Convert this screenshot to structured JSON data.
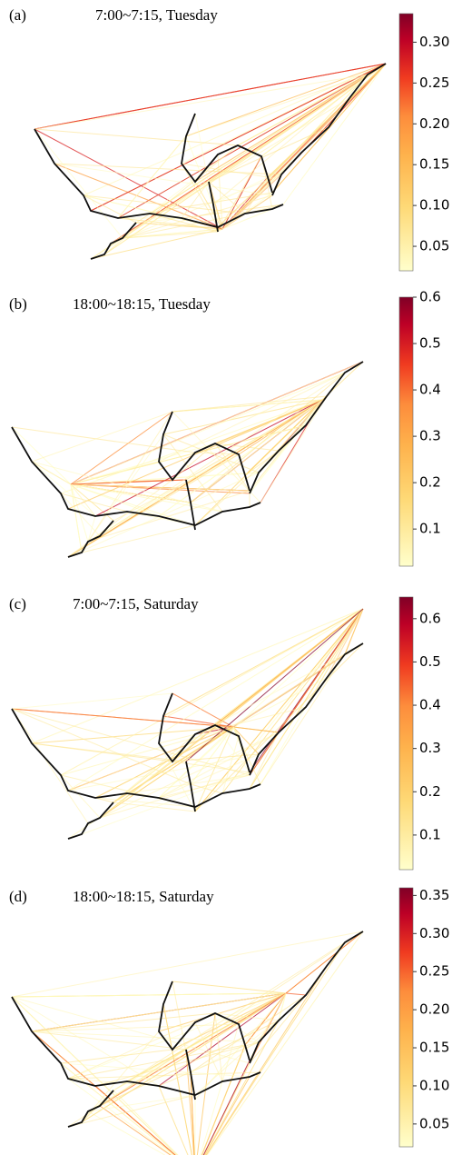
{
  "panels": [
    {
      "label": "(a)",
      "title": "7:00~7:15,  Tuesday",
      "colorbar": {
        "lim": [
          0.02,
          0.335
        ],
        "ticks": [
          0.05,
          {
            "value": 0.1,
            "label": "0.10"
          },
          0.15,
          {
            "value": 0.2,
            "label": "0.20"
          },
          0.25,
          {
            "value": 0.3,
            "label": "0.30"
          }
        ]
      }
    },
    {
      "label": "(b)",
      "title": "18:00~18:15, Tuesday",
      "colorbar": {
        "lim": [
          0.02,
          0.6
        ],
        "ticks": [
          0.1,
          0.2,
          0.3,
          0.4,
          0.5,
          0.6
        ]
      }
    },
    {
      "label": "(c)",
      "title": "7:00~7:15, Saturday",
      "colorbar": {
        "lim": [
          0.02,
          0.65
        ],
        "ticks": [
          0.1,
          0.2,
          0.3,
          0.4,
          0.5,
          0.6
        ]
      }
    },
    {
      "label": "(d)",
      "title": "18:00~18:15, Saturday",
      "colorbar": {
        "lim": [
          0.02,
          0.36
        ],
        "ticks": [
          0.05,
          {
            "value": 0.1,
            "label": "0.10"
          },
          0.15,
          {
            "value": 0.2,
            "label": "0.20"
          },
          0.25,
          {
            "value": 0.3,
            "label": "0.30"
          },
          0.35
        ]
      }
    }
  ]
}
